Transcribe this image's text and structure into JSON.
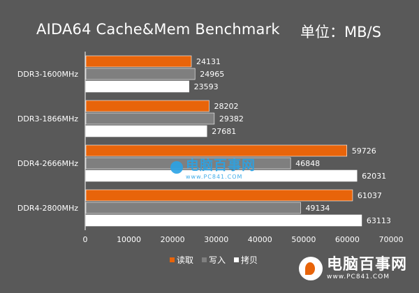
{
  "title": "AIDA64  Cache&Mem Benchmark",
  "unit_label": "单位：MB/S",
  "colors": {
    "background": "#595959",
    "read": "#e8640a",
    "write": "#7f7f7f",
    "copy": "#ffffff",
    "plot_border": "#ffffff"
  },
  "legend": [
    {
      "label": "读取",
      "color": "#e8640a"
    },
    {
      "label": "写入",
      "color": "#7f7f7f"
    },
    {
      "label": "拷贝",
      "color": "#ffffff"
    }
  ],
  "watermark": {
    "brand_cn": "电脑百事网",
    "brand_url": "www.PC841.COM"
  },
  "chart_data": {
    "type": "bar",
    "orientation": "horizontal",
    "title": "AIDA64  Cache&Mem Benchmark",
    "unit": "单位：MB/S",
    "categories": [
      "DDR3-1600MHz",
      "DDR3-1866MHz",
      "DDR4-2666MHz",
      "DDR4-2800MHz"
    ],
    "series": [
      {
        "name": "读取",
        "color": "#e8640a",
        "values": [
          24131,
          28202,
          59726,
          61037
        ]
      },
      {
        "name": "写入",
        "color": "#7f7f7f",
        "values": [
          24965,
          29382,
          46848,
          49134
        ]
      },
      {
        "name": "拷贝",
        "color": "#ffffff",
        "values": [
          23593,
          27681,
          62031,
          63113
        ]
      }
    ],
    "xlim": [
      0,
      70000
    ],
    "xticks": [
      0,
      10000,
      20000,
      30000,
      40000,
      50000,
      60000,
      70000
    ],
    "legend_position": "bottom",
    "grid": false
  }
}
